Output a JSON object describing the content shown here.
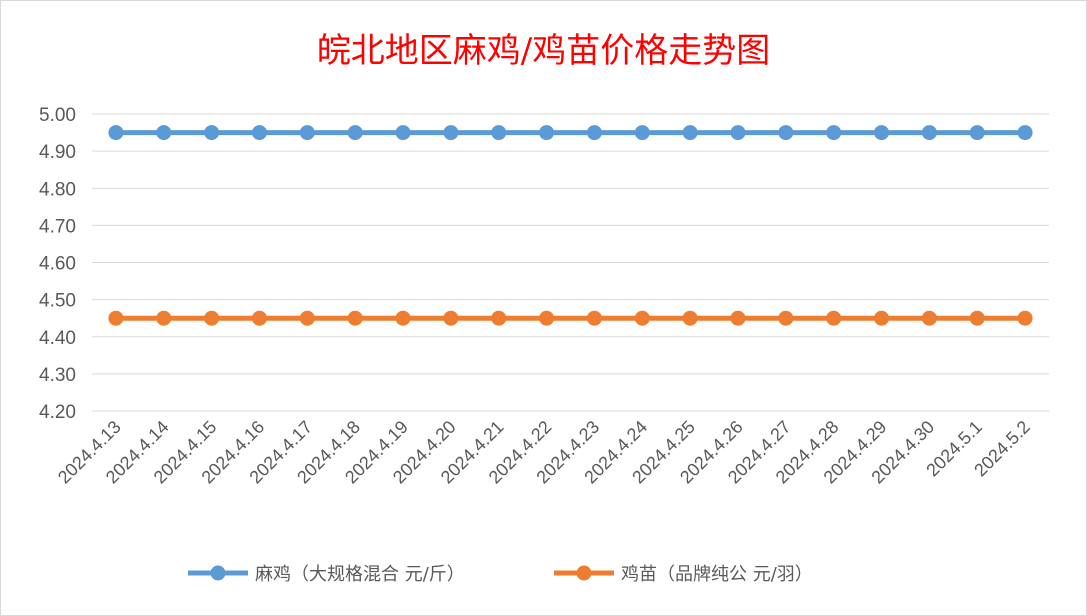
{
  "chart_data": {
    "type": "line",
    "title": "皖北地区麻鸡/鸡苗价格走势图",
    "categories": [
      "2024.4.13",
      "2024.4.14",
      "2024.4.15",
      "2024.4.16",
      "2024.4.17",
      "2024.4.18",
      "2024.4.19",
      "2024.4.20",
      "2024.4.21",
      "2024.4.22",
      "2024.4.23",
      "2024.4.24",
      "2024.4.25",
      "2024.4.26",
      "2024.4.27",
      "2024.4.28",
      "2024.4.29",
      "2024.4.30",
      "2024.5.1",
      "2024.5.2"
    ],
    "ylim": [
      4.2,
      5.0
    ],
    "yticks": [
      "4.20",
      "4.30",
      "4.40",
      "4.50",
      "4.60",
      "4.70",
      "4.80",
      "4.90",
      "5.00"
    ],
    "grid": true,
    "legend_position": "bottom",
    "series": [
      {
        "name": "麻鸡（大规格混合 元/斤）",
        "color": "#5b9bd5",
        "values": [
          4.95,
          4.95,
          4.95,
          4.95,
          4.95,
          4.95,
          4.95,
          4.95,
          4.95,
          4.95,
          4.95,
          4.95,
          4.95,
          4.95,
          4.95,
          4.95,
          4.95,
          4.95,
          4.95,
          4.95
        ]
      },
      {
        "name": "鸡苗（品牌纯公 元/羽）",
        "color": "#ed7d31",
        "values": [
          4.45,
          4.45,
          4.45,
          4.45,
          4.45,
          4.45,
          4.45,
          4.45,
          4.45,
          4.45,
          4.45,
          4.45,
          4.45,
          4.45,
          4.45,
          4.45,
          4.45,
          4.45,
          4.45,
          4.45
        ]
      }
    ]
  }
}
